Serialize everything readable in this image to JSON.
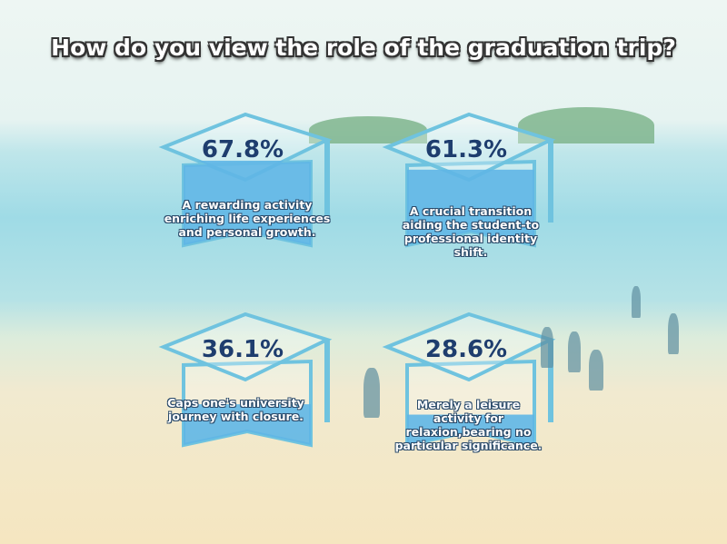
{
  "title": "How do you view the role of the graduation trip?",
  "chart_data": {
    "type": "pictorial-fill",
    "title": "How do you view the role of the graduation trip?",
    "unit": "%",
    "items": [
      {
        "value": 67.8,
        "label": "67.8%",
        "description": "A rewarding activity enriching life experiences and personal growth."
      },
      {
        "value": 61.3,
        "label": "61.3%",
        "description": "A crucial transition aiding the student-to professional identity shift."
      },
      {
        "value": 36.1,
        "label": "36.1%",
        "description": "Caps one's university journey with closure."
      },
      {
        "value": 28.6,
        "label": "28.6%",
        "description": "Merely a leisure activity for relaxion,bearing no particular significance."
      }
    ]
  },
  "colors": {
    "fill": "#5fb6e6",
    "outline": "#6fc3df",
    "text": "#1e3d6e"
  }
}
